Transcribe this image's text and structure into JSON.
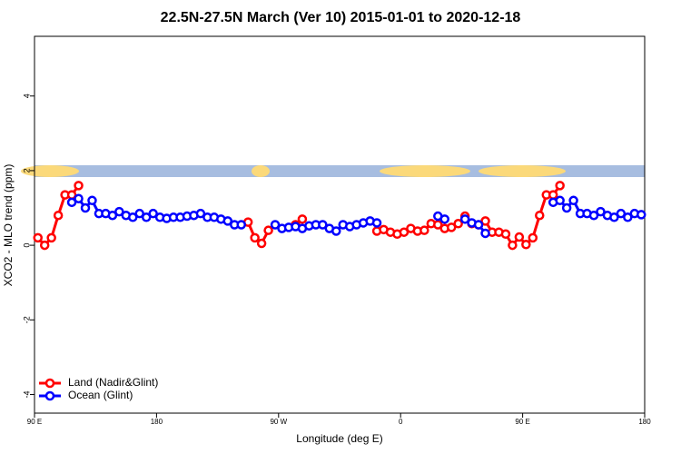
{
  "chart_data": {
    "type": "line",
    "title": "22.5N-27.5N March (Ver 10)   2015-01-01 to 2020-12-18",
    "x_label": "Longitude (deg E)",
    "y_label": "XCO2 - MLO trend (ppm)",
    "xlim": [
      90,
      540
    ],
    "ylim": [
      -4.5,
      5.6
    ],
    "xticks": [
      {
        "value": 90,
        "label": "90 E"
      },
      {
        "value": 180,
        "label": "180"
      },
      {
        "value": 270,
        "label": "90 W"
      },
      {
        "value": 360,
        "label": "0"
      },
      {
        "value": 450,
        "label": "90 E"
      },
      {
        "value": 540,
        "label": "180"
      }
    ],
    "yticks": [
      -4,
      -2,
      0,
      2,
      4
    ],
    "legend": "bottom-left",
    "series": [
      {
        "name": "Land (Nadir&Glint)",
        "color": "#ff0000",
        "x": [
          92.5,
          97.5,
          102.5,
          107.5,
          112.5,
          117.5,
          122.5,
          null,
          247.5,
          252.5,
          257.5,
          262.5,
          null,
          282.5,
          287.5,
          null,
          342.5,
          347.5,
          352.5,
          357.5,
          362.5,
          367.5,
          372.5,
          377.5,
          382.5,
          387.5,
          392.5,
          397.5,
          402.5,
          407.5,
          412.5,
          417.5,
          422.5,
          427.5,
          432.5,
          437.5,
          442.5,
          447.5,
          452.5,
          457.5,
          462.5,
          467.5,
          472.5,
          477.5
        ],
        "values": [
          0.2,
          0,
          0.2,
          0.8,
          1.35,
          1.35,
          1.6,
          null,
          0.62,
          0.2,
          0.05,
          0.4,
          null,
          0.55,
          0.7,
          null,
          0.38,
          0.42,
          0.35,
          0.3,
          0.35,
          0.45,
          0.38,
          0.4,
          0.58,
          0.55,
          0.45,
          0.48,
          0.58,
          0.78,
          0.58,
          0.55,
          0.65,
          0.35,
          0.35,
          0.3,
          0,
          0.22,
          0.02,
          0.2,
          0.8,
          1.35,
          1.35,
          1.6
        ]
      },
      {
        "name": "Ocean (Glint)",
        "color": "#0000ff",
        "x": [
          117.5,
          122.5,
          127.5,
          132.5,
          137.5,
          142.5,
          147.5,
          152.5,
          157.5,
          162.5,
          167.5,
          172.5,
          177.5,
          182.5,
          187.5,
          192.5,
          197.5,
          202.5,
          207.5,
          212.5,
          217.5,
          222.5,
          227.5,
          232.5,
          237.5,
          242.5,
          null,
          267.5,
          272.5,
          277.5,
          282.5,
          287.5,
          292.5,
          297.5,
          302.5,
          307.5,
          312.5,
          317.5,
          322.5,
          327.5,
          332.5,
          337.5,
          342.5,
          null,
          387.5,
          392.5,
          null,
          407.5,
          412.5,
          417.5,
          422.5,
          null,
          472.5,
          477.5,
          482.5,
          487.5,
          492.5,
          497.5,
          502.5,
          507.5,
          512.5,
          517.5,
          522.5,
          527.5,
          532.5,
          537.5
        ],
        "values": [
          1.15,
          1.25,
          1.0,
          1.2,
          0.85,
          0.85,
          0.8,
          0.9,
          0.8,
          0.75,
          0.85,
          0.75,
          0.85,
          0.75,
          0.72,
          0.75,
          0.75,
          0.78,
          0.8,
          0.85,
          0.75,
          0.75,
          0.7,
          0.65,
          0.55,
          0.55,
          null,
          0.55,
          0.45,
          0.48,
          0.5,
          0.45,
          0.52,
          0.55,
          0.55,
          0.45,
          0.38,
          0.55,
          0.5,
          0.55,
          0.6,
          0.65,
          0.6,
          null,
          0.78,
          0.7,
          null,
          0.7,
          0.6,
          0.55,
          0.32,
          null,
          1.15,
          1.2,
          1.0,
          1.2,
          0.85,
          0.85,
          0.8,
          0.9,
          0.8,
          0.75,
          0.85,
          0.75,
          0.85,
          0.82
        ]
      }
    ]
  }
}
